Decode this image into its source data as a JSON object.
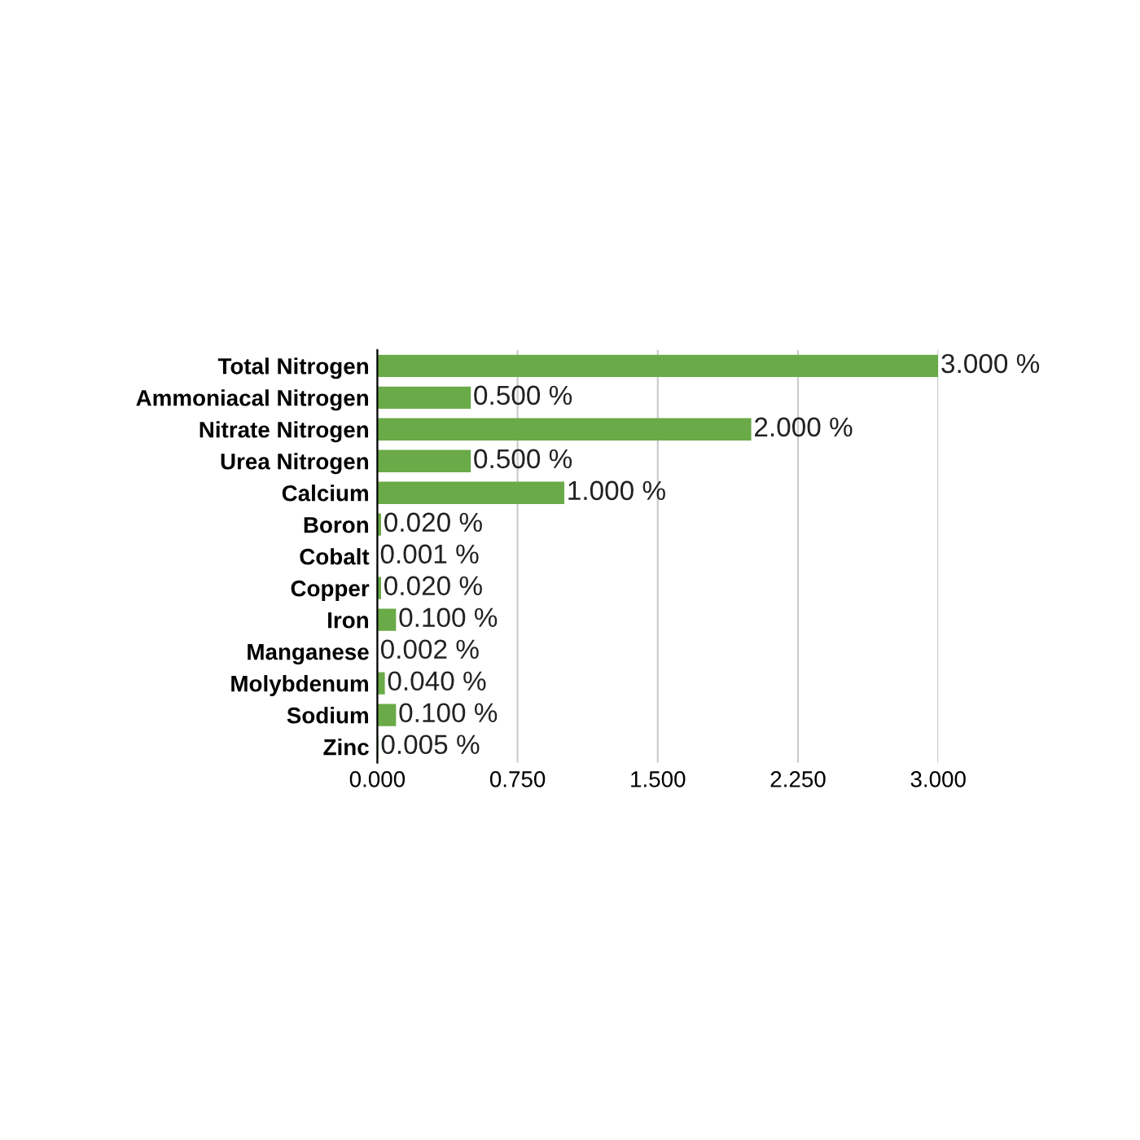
{
  "chart_data": {
    "type": "bar",
    "orientation": "horizontal",
    "categories": [
      "Total Nitrogen",
      "Ammoniacal Nitrogen",
      "Nitrate Nitrogen",
      "Urea Nitrogen",
      "Calcium",
      "Boron",
      "Cobalt",
      "Copper",
      "Iron",
      "Manganese",
      "Molybdenum",
      "Sodium",
      "Zinc"
    ],
    "values": [
      3.0,
      0.5,
      2.0,
      0.5,
      1.0,
      0.02,
      0.001,
      0.02,
      0.1,
      0.002,
      0.04,
      0.1,
      0.005
    ],
    "value_labels": [
      "3.000 %",
      "0.500 %",
      "2.000 %",
      "0.500 %",
      "1.000 %",
      "0.020 %",
      "0.001 %",
      "0.020 %",
      "0.100 %",
      "0.002 %",
      "0.040 %",
      "0.100 %",
      "0.005 %"
    ],
    "color": "#6aaa48",
    "xlim": [
      0,
      3.0
    ],
    "xticks": [
      {
        "value": 0,
        "label": "0.000"
      },
      {
        "value": 0.75,
        "label": "0.750"
      },
      {
        "value": 1.5,
        "label": "1.500"
      },
      {
        "value": 2.25,
        "label": "2.250"
      },
      {
        "value": 3.0,
        "label": "3.000"
      }
    ],
    "grid": "x"
  }
}
